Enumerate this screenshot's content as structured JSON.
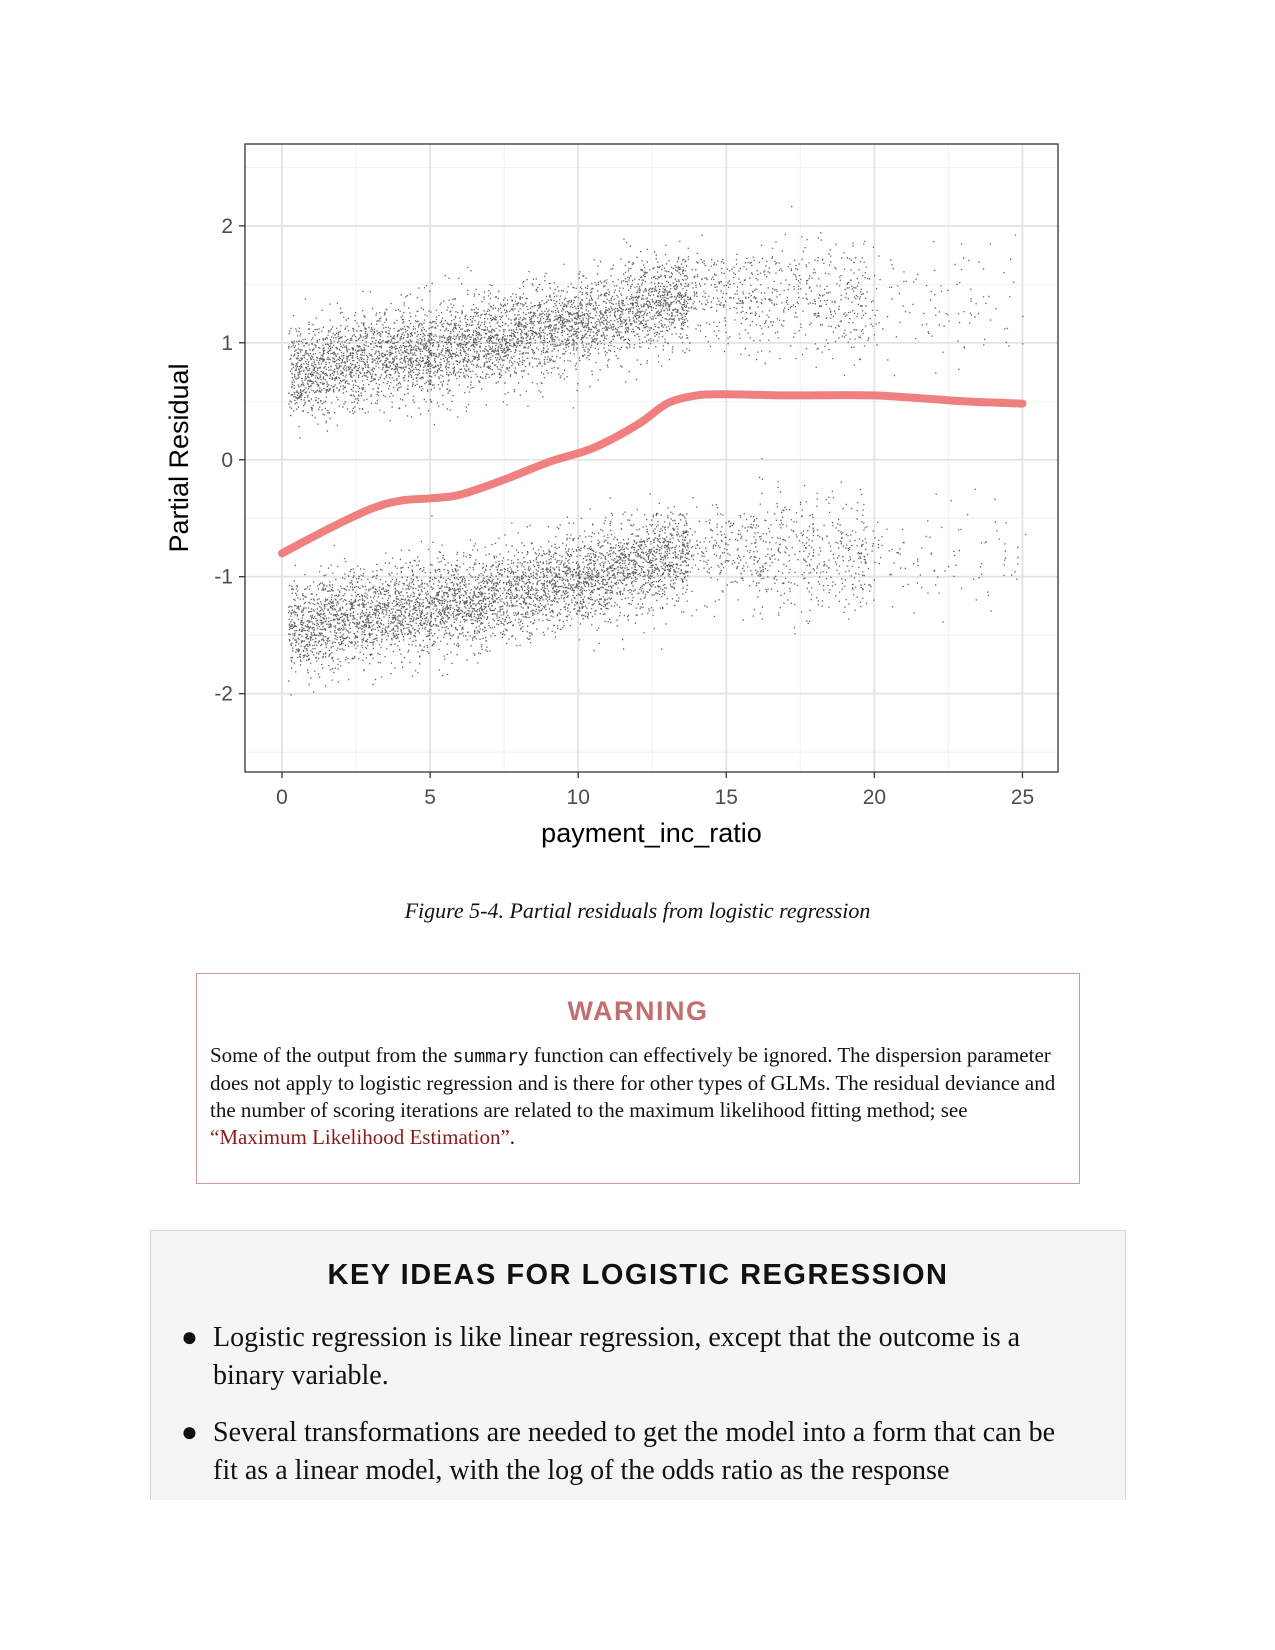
{
  "chart_data": {
    "type": "scatter",
    "xlabel": "payment_inc_ratio",
    "ylabel": "Partial Residual",
    "xlim": [
      -1.25,
      26.2
    ],
    "ylim": [
      -2.67,
      2.7
    ],
    "x_ticks": [
      "0",
      "5",
      "10",
      "15",
      "20",
      "25"
    ],
    "y_ticks": [
      "-2",
      "-1",
      "0",
      "1",
      "2"
    ],
    "grid": true,
    "series": [
      {
        "type": "scatter-band",
        "color": "#000000",
        "center": [
          [
            0.5,
            0.75
          ],
          [
            3,
            0.87
          ],
          [
            6,
            0.97
          ],
          [
            9,
            1.12
          ],
          [
            12,
            1.3
          ],
          [
            14,
            1.42
          ],
          [
            17,
            1.4
          ],
          [
            20,
            1.38
          ],
          [
            25,
            1.35
          ]
        ]
      },
      {
        "type": "scatter-band",
        "color": "#000000",
        "center": [
          [
            0.5,
            -1.45
          ],
          [
            3,
            -1.3
          ],
          [
            6,
            -1.22
          ],
          [
            9,
            -1.08
          ],
          [
            12,
            -0.9
          ],
          [
            14,
            -0.78
          ],
          [
            17,
            -0.8
          ],
          [
            20,
            -0.82
          ],
          [
            25,
            -0.86
          ]
        ]
      },
      {
        "type": "line",
        "color": "#f08080",
        "points": [
          [
            0,
            -0.8
          ],
          [
            1.5,
            -0.6
          ],
          [
            3,
            -0.42
          ],
          [
            4,
            -0.35
          ],
          [
            5,
            -0.33
          ],
          [
            6,
            -0.3
          ],
          [
            7.5,
            -0.17
          ],
          [
            9,
            -0.02
          ],
          [
            10.5,
            0.1
          ],
          [
            12,
            0.3
          ],
          [
            13,
            0.48
          ],
          [
            14,
            0.55
          ],
          [
            15,
            0.56
          ],
          [
            17,
            0.55
          ],
          [
            20,
            0.55
          ],
          [
            23,
            0.5
          ],
          [
            25,
            0.48
          ]
        ]
      }
    ]
  },
  "caption": "Figure 5-4. Partial residuals from logistic regression",
  "warning": {
    "title": "WARNING",
    "text_before": "Some of the output from the ",
    "code": "summary",
    "text_after": " function can effectively be ignored. The dispersion parameter does not apply to logistic regression and is there for other types of GLMs. The residual deviance and the number of scoring iterations are related to the maximum likelihood fitting method; see ",
    "link": "“Maximum Likelihood Estimation”",
    "end": "."
  },
  "key_ideas": {
    "title": "KEY IDEAS FOR LOGISTIC REGRESSION",
    "items": [
      "Logistic regression is like linear regression, except that the outcome is a binary variable.",
      "Several transformations are needed to get the model into a form that can be fit as a linear model, with the log of the odds ratio as the response"
    ]
  }
}
